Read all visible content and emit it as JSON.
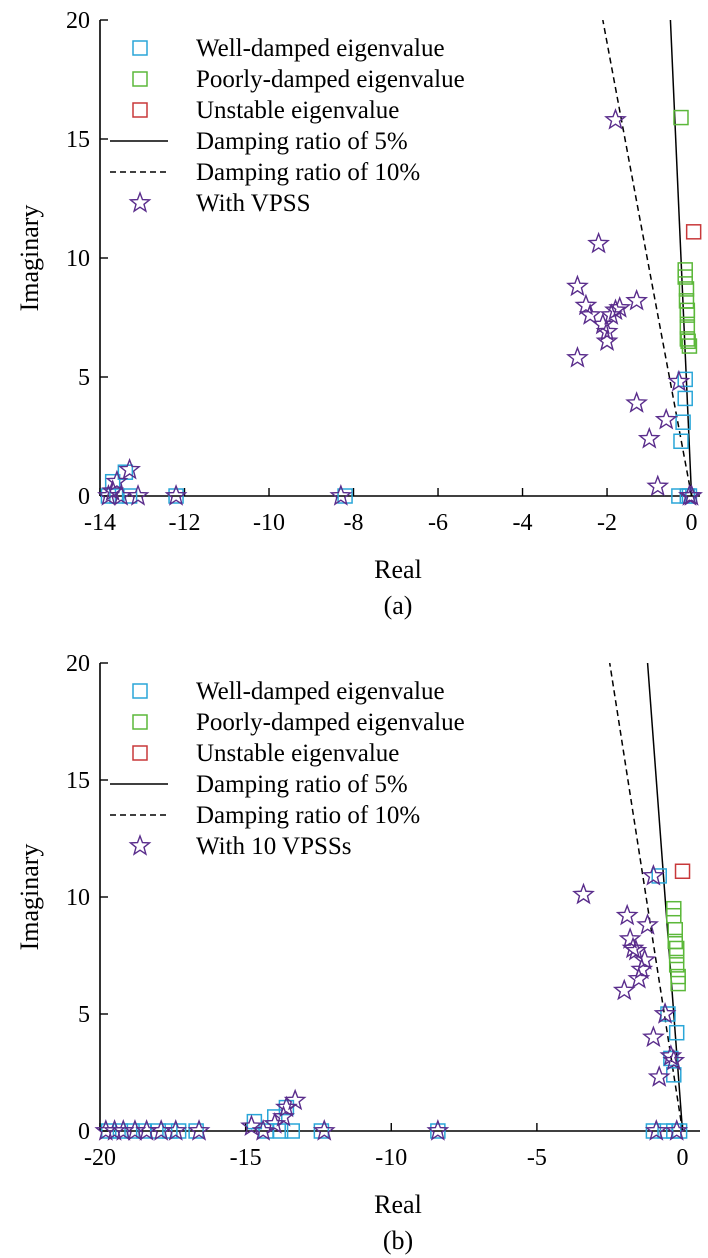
{
  "colors": {
    "well_damped": "#2aa6d8",
    "poorly_damped": "#5cb83a",
    "unstable": "#c8383a",
    "vpss": "#5a2d8c",
    "line": "#000000"
  },
  "icons": {
    "well_damped": "square-marker",
    "poorly_damped": "square-marker",
    "unstable": "square-marker",
    "vpss": "star-marker",
    "damping_5": "solid-line",
    "damping_10": "dashed-line"
  },
  "chart_data": [
    {
      "type": "scatter",
      "caption": "(a)",
      "xlabel": "Real",
      "ylabel": "Imaginary",
      "xlim": [
        -14,
        0.2
      ],
      "ylim": [
        0,
        20
      ],
      "xticks": [
        -14,
        -12,
        -10,
        -8,
        -6,
        -4,
        -2,
        0
      ],
      "xtick_labels": [
        "-14",
        "-12",
        "-10",
        "-8",
        "-6",
        "-4",
        "-2",
        "0"
      ],
      "yticks": [
        0,
        5,
        10,
        15,
        20
      ],
      "ytick_labels": [
        "0",
        "5",
        "10",
        "15",
        "20"
      ],
      "grid": false,
      "legend_position": "top-left",
      "legend": [
        "Well-damped eigenvalue",
        "Poorly-damped eigenvalue",
        "Unstable eigenvalue",
        "Damping ratio of 5%",
        "Damping ratio of 10%",
        "With VPSS"
      ],
      "series": [
        {
          "name": "Well-damped eigenvalue",
          "marker": "square",
          "x": [
            -13.8,
            -13.7,
            -13.6,
            -13.4,
            -13.3,
            -12.2,
            -8.2,
            -0.3,
            -0.25,
            -0.2,
            -0.15,
            -0.15,
            -0.1,
            -0.05
          ],
          "y": [
            0,
            0.6,
            0,
            1.0,
            0,
            0,
            0,
            0,
            2.3,
            3.1,
            4.1,
            4.9,
            0,
            0
          ]
        },
        {
          "name": "Poorly-damped eigenvalue",
          "marker": "square",
          "x": [
            -0.25,
            -0.15,
            -0.15,
            -0.12,
            -0.12,
            -0.1,
            -0.1,
            -0.1,
            -0.1,
            -0.08,
            -0.05
          ],
          "y": [
            15.9,
            9.5,
            9.2,
            8.7,
            8.2,
            7.8,
            7.6,
            7.1,
            6.6,
            6.5,
            6.3
          ]
        },
        {
          "name": "Unstable eigenvalue",
          "marker": "square",
          "x": [
            0.05
          ],
          "y": [
            11.1
          ]
        },
        {
          "name": "Damping ratio of 5%",
          "line": "solid",
          "x": [
            0,
            -0.5
          ],
          "y": [
            0,
            20
          ]
        },
        {
          "name": "Damping ratio of 10%",
          "line": "dashed",
          "x": [
            0,
            -2.1
          ],
          "y": [
            0,
            20
          ]
        },
        {
          "name": "With VPSS",
          "marker": "star",
          "x": [
            -13.8,
            -13.7,
            -13.6,
            -13.5,
            -13.3,
            -13.1,
            -12.2,
            -8.3,
            -2.7,
            -2.7,
            -2.5,
            -2.4,
            -2.2,
            -2.1,
            -2.0,
            -2.0,
            -1.9,
            -1.8,
            -1.8,
            -1.7,
            -1.3,
            -1.3,
            -1.0,
            -0.8,
            -0.6,
            -0.3,
            -0.05,
            0.0
          ],
          "y": [
            0,
            0.2,
            0.6,
            0,
            1.1,
            0,
            0,
            0,
            5.8,
            8.8,
            8.0,
            7.6,
            10.6,
            7.2,
            6.5,
            6.9,
            7.6,
            7.8,
            15.8,
            7.9,
            8.2,
            3.9,
            2.4,
            0.4,
            3.2,
            4.8,
            0,
            0
          ]
        }
      ]
    },
    {
      "type": "scatter",
      "caption": "(b)",
      "xlabel": "Real",
      "ylabel": "Imaginary",
      "xlim": [
        -20,
        0.6
      ],
      "ylim": [
        0,
        20
      ],
      "xticks": [
        -20,
        -15,
        -10,
        -5,
        0
      ],
      "xtick_labels": [
        "-20",
        "-15",
        "-10",
        "-5",
        "0"
      ],
      "yticks": [
        0,
        5,
        10,
        15,
        20
      ],
      "ytick_labels": [
        "0",
        "5",
        "10",
        "15",
        "20"
      ],
      "grid": false,
      "legend_position": "top-left",
      "legend": [
        "Well-damped eigenvalue",
        "Poorly-damped eigenvalue",
        "Unstable eigenvalue",
        "Damping ratio of 5%",
        "Damping ratio of 10%",
        "With 10 VPSSs"
      ],
      "series": [
        {
          "name": "Well-damped eigenvalue",
          "marker": "square",
          "x": [
            -19.7,
            -19.3,
            -18.9,
            -18.5,
            -18.0,
            -17.6,
            -17.3,
            -16.7,
            -14.7,
            -14.3,
            -14.0,
            -13.8,
            -13.6,
            -13.4,
            -12.4,
            -8.4,
            -1.0,
            -0.8,
            -0.6,
            -0.5,
            -0.4,
            -0.3,
            -0.3,
            -0.2,
            -0.1
          ],
          "y": [
            0,
            0,
            0,
            0,
            0,
            0,
            0,
            0,
            0.4,
            0,
            0.6,
            0,
            1.0,
            0,
            0,
            0,
            0,
            10.9,
            0,
            5.0,
            3.1,
            2.4,
            0,
            4.2,
            0
          ]
        },
        {
          "name": "Poorly-damped eigenvalue",
          "marker": "square",
          "x": [
            -0.3,
            -0.3,
            -0.25,
            -0.25,
            -0.2,
            -0.2,
            -0.2,
            -0.15,
            -0.15
          ],
          "y": [
            9.5,
            9.2,
            8.6,
            8.1,
            7.8,
            7.5,
            7.1,
            6.6,
            6.3
          ]
        },
        {
          "name": "Unstable eigenvalue",
          "marker": "square",
          "x": [
            0.0
          ],
          "y": [
            11.1
          ]
        },
        {
          "name": "Damping ratio of 5%",
          "line": "solid",
          "x": [
            0,
            -1.2
          ],
          "y": [
            0,
            20
          ]
        },
        {
          "name": "Damping ratio of 10%",
          "line": "dashed",
          "x": [
            0,
            -2.5
          ],
          "y": [
            0,
            20
          ]
        },
        {
          "name": "With 10 VPSSs",
          "marker": "star",
          "x": [
            -19.8,
            -19.5,
            -19.2,
            -18.8,
            -18.4,
            -17.9,
            -17.4,
            -16.6,
            -14.8,
            -14.4,
            -14.0,
            -13.7,
            -13.6,
            -13.3,
            -12.3,
            -8.4,
            -3.4,
            -2.0,
            -1.9,
            -1.8,
            -1.7,
            -1.6,
            -1.5,
            -1.4,
            -1.3,
            -1.2,
            -1.0,
            -1.0,
            -0.9,
            -0.8,
            -0.6,
            -0.4,
            -0.3,
            -0.2
          ],
          "y": [
            0,
            0,
            0,
            0,
            0,
            0,
            0,
            0,
            0.2,
            0,
            0.3,
            0.6,
            1.0,
            1.3,
            0,
            0,
            10.1,
            6.0,
            9.2,
            8.2,
            7.8,
            7.7,
            6.5,
            6.9,
            7.3,
            8.8,
            10.9,
            4.0,
            0,
            2.3,
            5.0,
            3.2,
            3.0,
            0
          ]
        }
      ]
    }
  ]
}
